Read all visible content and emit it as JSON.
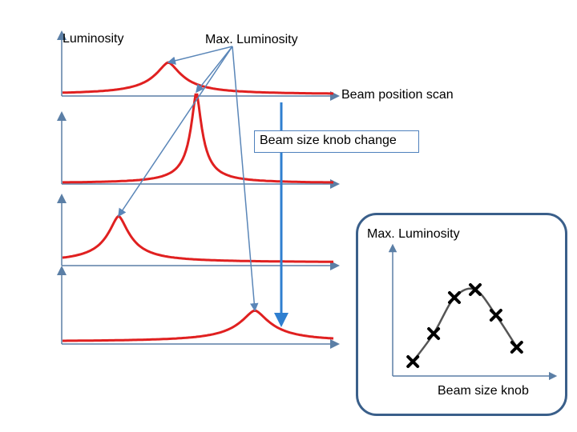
{
  "labels": {
    "luminosity": "Luminosity",
    "max_luminosity": "Max. Luminosity",
    "beam_position_scan": "Beam position scan",
    "beam_size_knob_change": "Beam size knob change",
    "inset_ylabel": "Max. Luminosity",
    "inset_xlabel": "Beam size knob"
  },
  "colors": {
    "curve": "#e02020",
    "axis": "#5b7fa6",
    "leader": "#5a86b8",
    "arrow": "#2f7fd0",
    "inset_border": "#3a5f8a",
    "inset_curve": "#555555",
    "marker": "#000000"
  },
  "icons": {
    "marker": "cross-marker-icon"
  },
  "chart_data": {
    "type": "line",
    "title": "",
    "xlabel": "Beam size knob",
    "ylabel": "Max. Luminosity",
    "x": [
      1,
      2,
      3,
      4,
      5,
      6
    ],
    "values": [
      0.1,
      0.45,
      0.9,
      1.0,
      0.68,
      0.28
    ],
    "grid": false
  }
}
